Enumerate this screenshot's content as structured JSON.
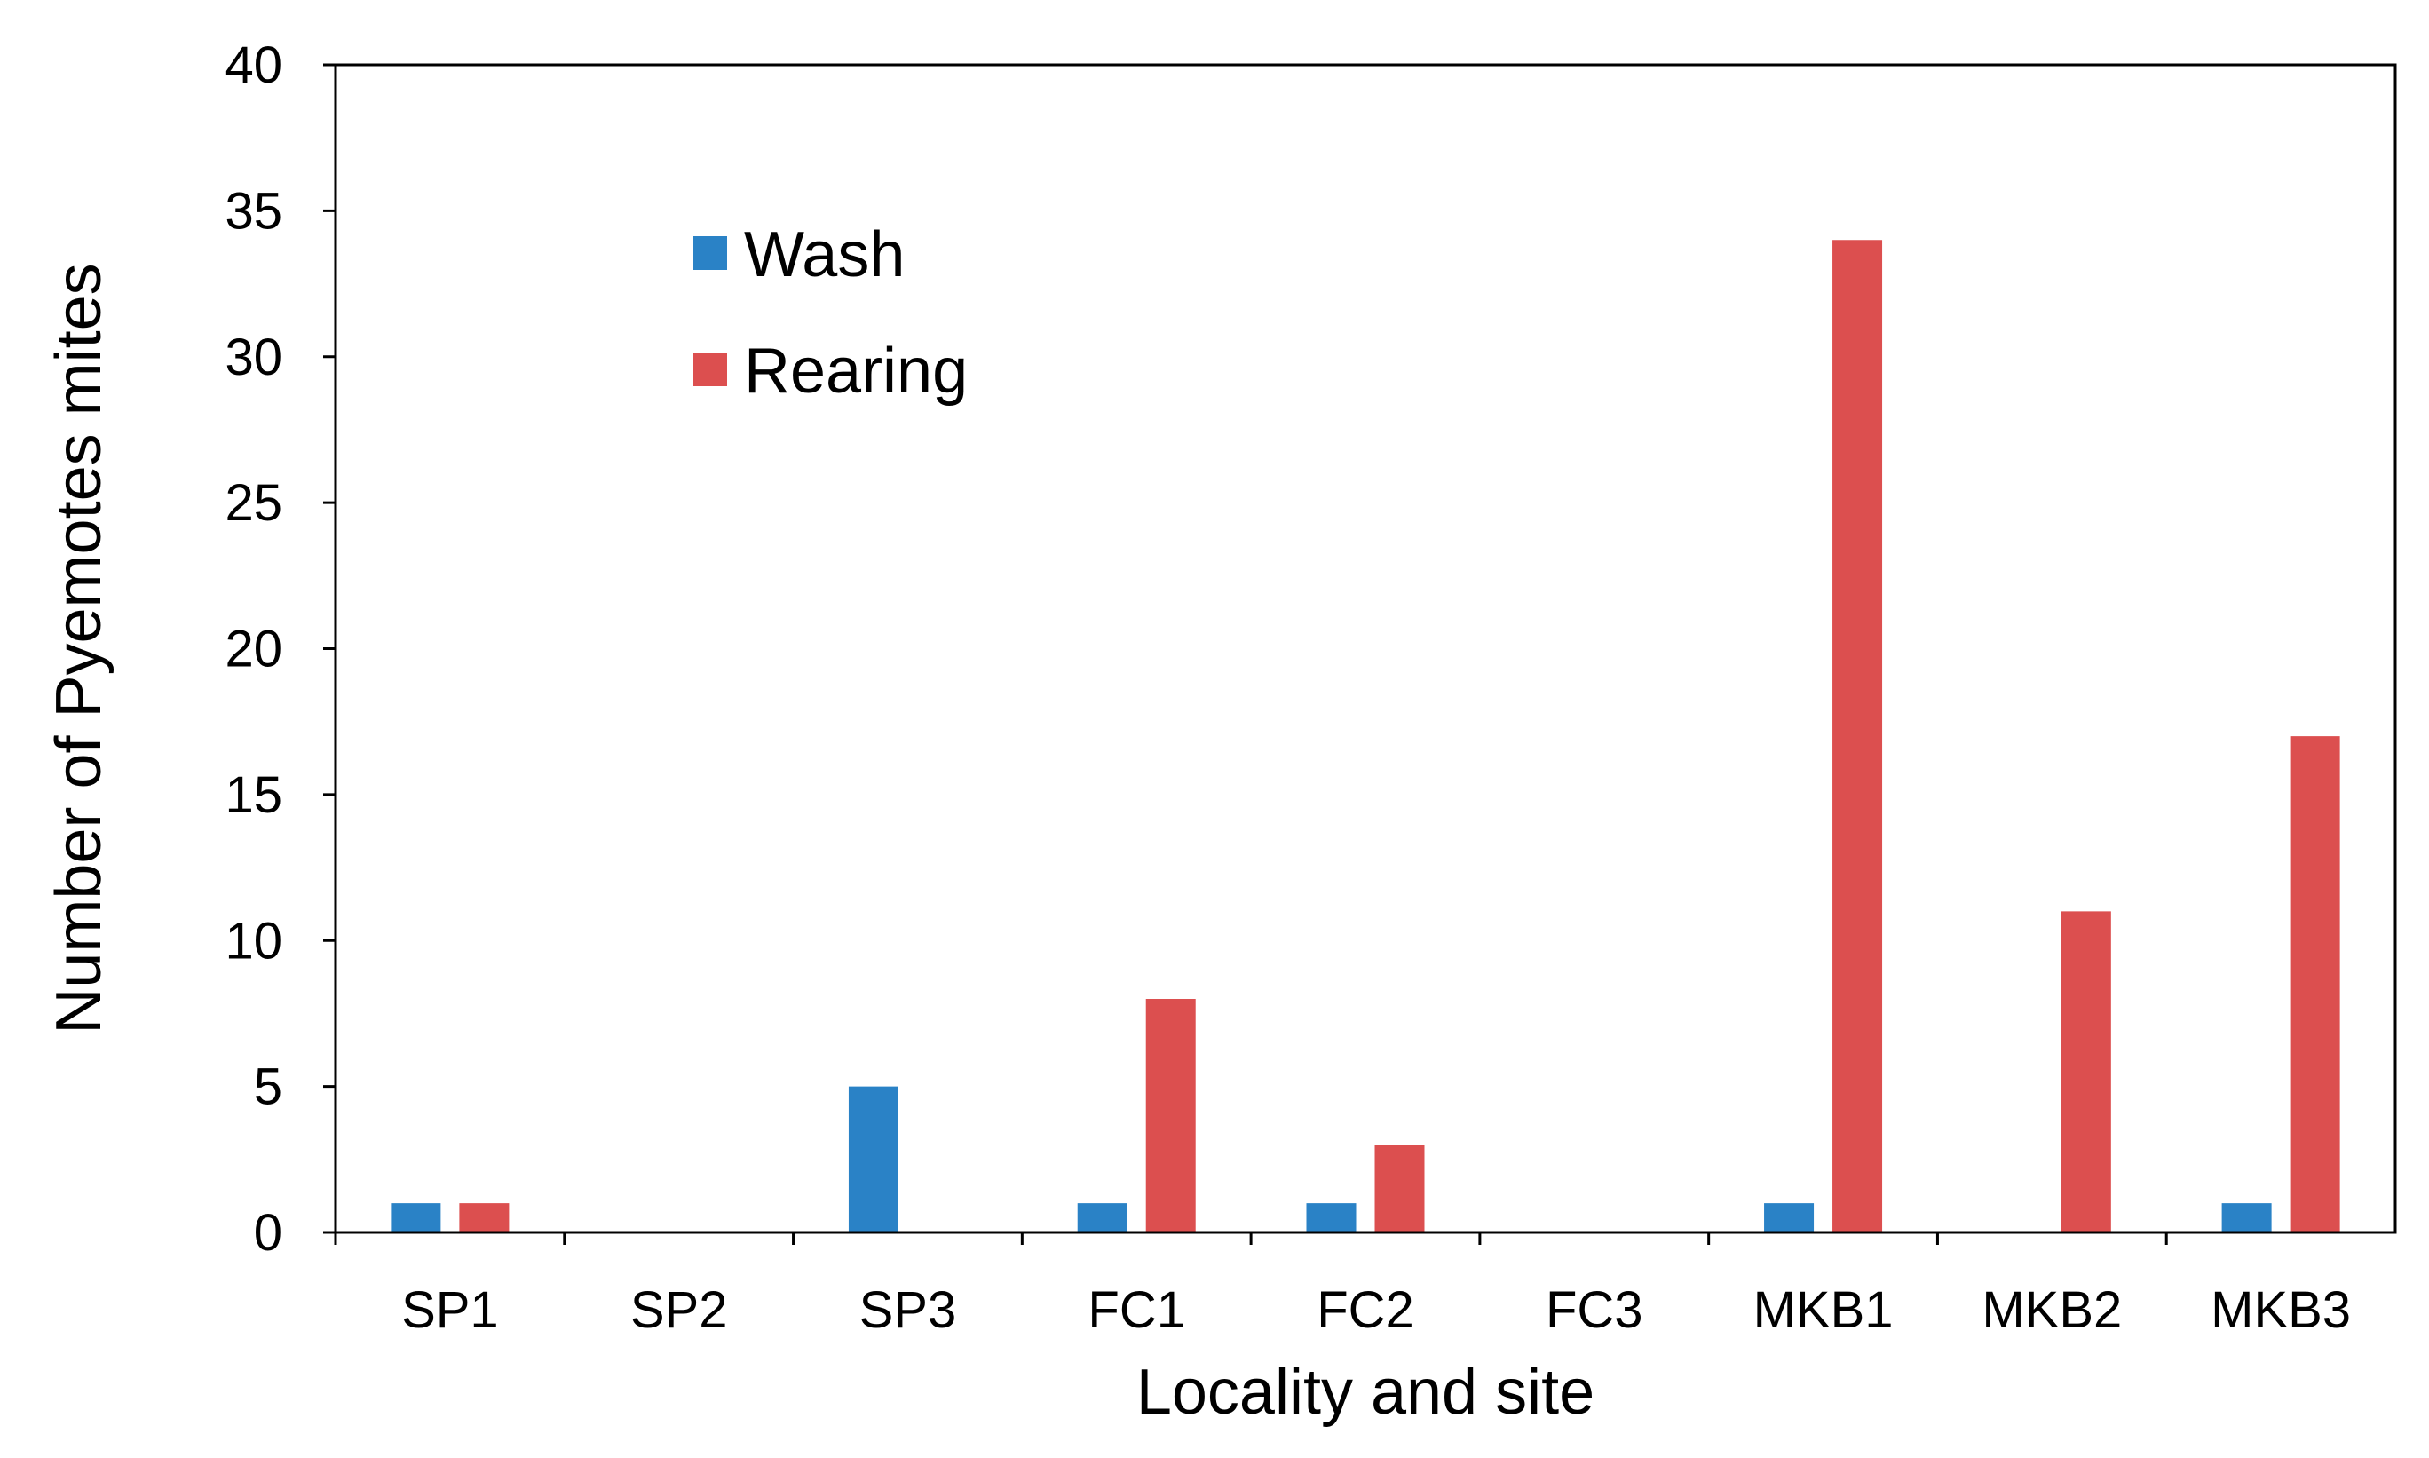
{
  "chart_data": {
    "type": "bar",
    "title": "",
    "xlabel": "Locality and site",
    "ylabel": "Number of Pyemotes mites",
    "categories": [
      "SP1",
      "SP2",
      "SP3",
      "FC1",
      "FC2",
      "FC3",
      "MKB1",
      "MKB2",
      "MKB3"
    ],
    "series": [
      {
        "name": "Wash",
        "color": "#2a82c6",
        "values": [
          1,
          0,
          5,
          1,
          1,
          0,
          1,
          0,
          1
        ]
      },
      {
        "name": "Rearing",
        "color": "#dc4f4f",
        "values": [
          1,
          0,
          0,
          8,
          3,
          0,
          34,
          11,
          17
        ]
      }
    ],
    "ylim": [
      0,
      40
    ],
    "yticks": [
      0,
      5,
      10,
      15,
      20,
      25,
      30,
      35,
      40
    ],
    "grid": false,
    "legend_position": "top-left"
  }
}
